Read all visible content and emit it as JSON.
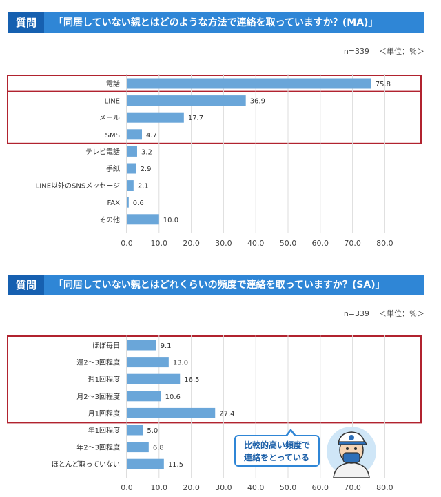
{
  "q1": {
    "tag": "質問",
    "text": "「同居していない親とはどのような方法で連絡を取っていますか？(MA)」",
    "n": "n=339",
    "unit": "＜単位：％＞"
  },
  "q2": {
    "tag": "質問",
    "text": "「同居していない親とはどれくらいの頻度で連絡を取っていますか？(SA)」",
    "n": "n=339",
    "unit": "＜単位：％＞"
  },
  "callout": {
    "line1": "比較的高い頻度で",
    "line2": "連絡をとっている"
  },
  "colors": {
    "bar": "#6aa6d9",
    "frame": "#b1232f",
    "header": "#2f86d6",
    "tag": "#1660b0"
  },
  "chart_data": [
    {
      "type": "bar",
      "orientation": "horizontal",
      "categories": [
        "電話",
        "LINE",
        "メール",
        "SMS",
        "テレビ電話",
        "手紙",
        "LINE以外のSNSメッセージ",
        "FAX",
        "その他"
      ],
      "values": [
        75.8,
        36.9,
        17.7,
        4.7,
        3.2,
        2.9,
        2.1,
        0.6,
        10.0
      ],
      "value_labels": [
        "75.8",
        "36.9",
        "17.7",
        "4.7",
        "3.2",
        "2.9",
        "2.1",
        "0.6",
        "10.0"
      ],
      "xlim": [
        0,
        80
      ],
      "xticks": [
        "0.0",
        "10.0",
        "20.0",
        "30.0",
        "40.0",
        "50.0",
        "60.0",
        "70.0",
        "80.0"
      ],
      "grid": true,
      "highlight_groups": [
        [
          0,
          0
        ],
        [
          1,
          3
        ]
      ]
    },
    {
      "type": "bar",
      "orientation": "horizontal",
      "categories": [
        "ほぼ毎日",
        "週2～3回程度",
        "週1回程度",
        "月2～3回程度",
        "月1回程度",
        "年1回程度",
        "年2～3回程度",
        "ほとんど取っていない"
      ],
      "values": [
        9.1,
        13.0,
        16.5,
        10.6,
        27.4,
        5.0,
        6.8,
        11.5
      ],
      "value_labels": [
        "9.1",
        "13.0",
        "16.5",
        "10.6",
        "27.4",
        "5.0",
        "6.8",
        "11.5"
      ],
      "xlim": [
        0,
        80
      ],
      "xticks": [
        "0.0",
        "10.0",
        "20.0",
        "30.0",
        "40.0",
        "50.0",
        "60.0",
        "70.0",
        "80.0"
      ],
      "grid": true,
      "highlight_groups": [
        [
          0,
          4
        ]
      ]
    }
  ]
}
